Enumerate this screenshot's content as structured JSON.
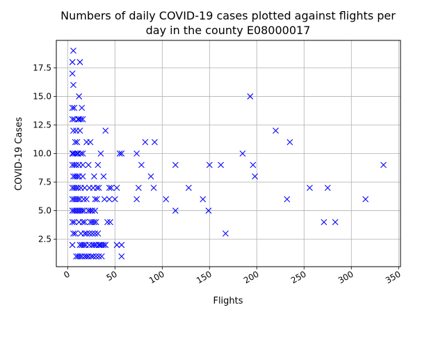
{
  "chart_data": {
    "type": "scatter",
    "title_lines": [
      "Numbers of daily COVID-19 cases plotted against flights per",
      "day in the county E08000017"
    ],
    "xlabel": "Flights",
    "ylabel": "COVID-19 Cases",
    "xlim": [
      -12,
      352
    ],
    "ylim": [
      0.1,
      19.9
    ],
    "x_ticks": [
      0,
      50,
      100,
      150,
      200,
      250,
      300,
      350
    ],
    "y_ticks": [
      2.5,
      5.0,
      7.5,
      10.0,
      12.5,
      15.0,
      17.5
    ],
    "x_tick_labels": [
      "0",
      "50",
      "100",
      "150",
      "200",
      "250",
      "300",
      "350"
    ],
    "y_tick_labels": [
      "2.5",
      "5.0",
      "7.5",
      "10.0",
      "12.5",
      "15.0",
      "17.5"
    ],
    "grid": true,
    "marker": "x",
    "color": "#0000ff",
    "points": [
      [
        6,
        19
      ],
      [
        5,
        18
      ],
      [
        13,
        18
      ],
      [
        5,
        17
      ],
      [
        6,
        16
      ],
      [
        12,
        15
      ],
      [
        15,
        14
      ],
      [
        5,
        14
      ],
      [
        7,
        14
      ],
      [
        5,
        13
      ],
      [
        7,
        13
      ],
      [
        11,
        13
      ],
      [
        12,
        13
      ],
      [
        14,
        13
      ],
      [
        16,
        13
      ],
      [
        6,
        12
      ],
      [
        9,
        12
      ],
      [
        13,
        12
      ],
      [
        40,
        12
      ],
      [
        8,
        11
      ],
      [
        10,
        11
      ],
      [
        20,
        11
      ],
      [
        24,
        11
      ],
      [
        5,
        10
      ],
      [
        6,
        10
      ],
      [
        8,
        10
      ],
      [
        10,
        10
      ],
      [
        11,
        10
      ],
      [
        14,
        10
      ],
      [
        16,
        10
      ],
      [
        35,
        10
      ],
      [
        5,
        9
      ],
      [
        7,
        9
      ],
      [
        9,
        9
      ],
      [
        12,
        9
      ],
      [
        16,
        9
      ],
      [
        22,
        9
      ],
      [
        32,
        9
      ],
      [
        6,
        8
      ],
      [
        8,
        8
      ],
      [
        10,
        8
      ],
      [
        12,
        8
      ],
      [
        16,
        8
      ],
      [
        28,
        8
      ],
      [
        38,
        8
      ],
      [
        5,
        7
      ],
      [
        7,
        7
      ],
      [
        9,
        7
      ],
      [
        11,
        7
      ],
      [
        14,
        7
      ],
      [
        18,
        7
      ],
      [
        23,
        7
      ],
      [
        27,
        7
      ],
      [
        31,
        7
      ],
      [
        33,
        7
      ],
      [
        44,
        7
      ],
      [
        46,
        7
      ],
      [
        52,
        7
      ],
      [
        5,
        6
      ],
      [
        7,
        6
      ],
      [
        9,
        6
      ],
      [
        11,
        6
      ],
      [
        13,
        6
      ],
      [
        17,
        6
      ],
      [
        20,
        6
      ],
      [
        29,
        6
      ],
      [
        31,
        6
      ],
      [
        39,
        6
      ],
      [
        44,
        6
      ],
      [
        50,
        6
      ],
      [
        5,
        5
      ],
      [
        7,
        5
      ],
      [
        9,
        5
      ],
      [
        11,
        5
      ],
      [
        13,
        5
      ],
      [
        15,
        5
      ],
      [
        17,
        5
      ],
      [
        22,
        5
      ],
      [
        24,
        5
      ],
      [
        26,
        5
      ],
      [
        29,
        5
      ],
      [
        5,
        4
      ],
      [
        7,
        4
      ],
      [
        12,
        4
      ],
      [
        16,
        4
      ],
      [
        18,
        4
      ],
      [
        24,
        4
      ],
      [
        26,
        4
      ],
      [
        28,
        4
      ],
      [
        30,
        4
      ],
      [
        42,
        4
      ],
      [
        45,
        4
      ],
      [
        6,
        3
      ],
      [
        8,
        3
      ],
      [
        14,
        3
      ],
      [
        18,
        3
      ],
      [
        20,
        3
      ],
      [
        23,
        3
      ],
      [
        26,
        3
      ],
      [
        29,
        3
      ],
      [
        32,
        3
      ],
      [
        5,
        2
      ],
      [
        13,
        2
      ],
      [
        15,
        2
      ],
      [
        17,
        2
      ],
      [
        19,
        2
      ],
      [
        23,
        2
      ],
      [
        26,
        2
      ],
      [
        28,
        2
      ],
      [
        30,
        2
      ],
      [
        33,
        2
      ],
      [
        34,
        2
      ],
      [
        36,
        2
      ],
      [
        38,
        2
      ],
      [
        40,
        2
      ],
      [
        52,
        2
      ],
      [
        57,
        2
      ],
      [
        9,
        1
      ],
      [
        11,
        1
      ],
      [
        13,
        1
      ],
      [
        15,
        1
      ],
      [
        18,
        1
      ],
      [
        20,
        1
      ],
      [
        22,
        1
      ],
      [
        25,
        1
      ],
      [
        27,
        1
      ],
      [
        30,
        1
      ],
      [
        33,
        1
      ],
      [
        36,
        1
      ],
      [
        57,
        1
      ],
      [
        55,
        10
      ],
      [
        57,
        10
      ],
      [
        73,
        10
      ],
      [
        78,
        9
      ],
      [
        75,
        7
      ],
      [
        73,
        6
      ],
      [
        82,
        11
      ],
      [
        92,
        11
      ],
      [
        88,
        8
      ],
      [
        91,
        7
      ],
      [
        104,
        6
      ],
      [
        114,
        9
      ],
      [
        114,
        5
      ],
      [
        128,
        7
      ],
      [
        143,
        6
      ],
      [
        149,
        5
      ],
      [
        150,
        9
      ],
      [
        162,
        9
      ],
      [
        167,
        3
      ],
      [
        185,
        10
      ],
      [
        193,
        15
      ],
      [
        196,
        9
      ],
      [
        198,
        8
      ],
      [
        220,
        12
      ],
      [
        232,
        6
      ],
      [
        235,
        11
      ],
      [
        256,
        7
      ],
      [
        271,
        4
      ],
      [
        275,
        7
      ],
      [
        283,
        4
      ],
      [
        315,
        6
      ],
      [
        334,
        9
      ]
    ]
  }
}
